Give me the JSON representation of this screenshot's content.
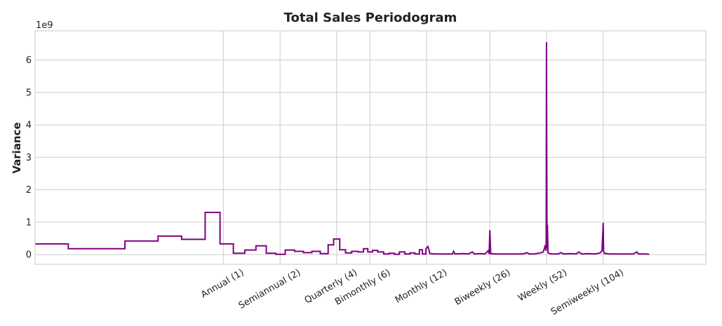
{
  "chart_data": {
    "type": "line",
    "title": "Total Sales Periodogram",
    "xlabel": "",
    "ylabel": "Variance",
    "y_offset_label": "1e9",
    "x_scale": "log",
    "x_tick_values": [
      1,
      2,
      4,
      6,
      12,
      26,
      52,
      104
    ],
    "x_tick_labels": [
      "Annual (1)",
      "Semiannual (2)",
      "Quarterly (4)",
      "Bimonthly (6)",
      "Monthly (12)",
      "Biweekly (26)",
      "Weekly (52)",
      "Semiweekly (104)"
    ],
    "xlim": [
      0.1,
      365
    ],
    "y_ticks": [
      0,
      1,
      2,
      3,
      4,
      5,
      6
    ],
    "y_tick_labels": [
      "0",
      "1",
      "2",
      "3",
      "4",
      "5",
      "6"
    ],
    "ylim": [
      -0.3,
      6.9
    ],
    "grid": true,
    "line_color": "#800080",
    "series": [
      {
        "values": [
          [
            0.1,
            0.33
          ],
          [
            0.15,
            0.33
          ],
          [
            0.15,
            0.18
          ],
          [
            0.3,
            0.18
          ],
          [
            0.3,
            0.42
          ],
          [
            0.45,
            0.42
          ],
          [
            0.45,
            0.57
          ],
          [
            0.6,
            0.57
          ],
          [
            0.6,
            0.47
          ],
          [
            0.8,
            0.47
          ],
          [
            0.8,
            1.3
          ],
          [
            0.96,
            1.3
          ],
          [
            0.96,
            0.33
          ],
          [
            1.13,
            0.33
          ],
          [
            1.13,
            0.04
          ],
          [
            1.3,
            0.04
          ],
          [
            1.3,
            0.14
          ],
          [
            1.49,
            0.14
          ],
          [
            1.49,
            0.27
          ],
          [
            1.69,
            0.27
          ],
          [
            1.69,
            0.04
          ],
          [
            1.9,
            0.04
          ],
          [
            1.9,
            0.01
          ],
          [
            2.13,
            0.01
          ],
          [
            2.13,
            0.14
          ],
          [
            2.39,
            0.14
          ],
          [
            2.39,
            0.1
          ],
          [
            2.66,
            0.1
          ],
          [
            2.66,
            0.06
          ],
          [
            2.95,
            0.06
          ],
          [
            2.95,
            0.1
          ],
          [
            3.27,
            0.1
          ],
          [
            3.27,
            0.03
          ],
          [
            3.6,
            0.03
          ],
          [
            3.6,
            0.3
          ],
          [
            3.85,
            0.3
          ],
          [
            3.85,
            0.48
          ],
          [
            4.15,
            0.48
          ],
          [
            4.15,
            0.15
          ],
          [
            4.45,
            0.15
          ],
          [
            4.45,
            0.05
          ],
          [
            4.8,
            0.05
          ],
          [
            4.8,
            0.1
          ],
          [
            5.2,
            0.1
          ],
          [
            5.2,
            0.08
          ],
          [
            5.55,
            0.08
          ],
          [
            5.55,
            0.18
          ],
          [
            5.85,
            0.18
          ],
          [
            5.85,
            0.08
          ],
          [
            6.2,
            0.08
          ],
          [
            6.2,
            0.13
          ],
          [
            6.6,
            0.13
          ],
          [
            6.6,
            0.08
          ],
          [
            7.1,
            0.08
          ],
          [
            7.1,
            0.02
          ],
          [
            7.6,
            0.02
          ],
          [
            7.6,
            0.04
          ],
          [
            8.1,
            0.04
          ],
          [
            8.1,
            0.01
          ],
          [
            8.6,
            0.01
          ],
          [
            8.6,
            0.08
          ],
          [
            9.2,
            0.08
          ],
          [
            9.2,
            0.02
          ],
          [
            9.8,
            0.02
          ],
          [
            9.8,
            0.05
          ],
          [
            10.4,
            0.05
          ],
          [
            10.4,
            0.02
          ],
          [
            11.0,
            0.02
          ],
          [
            11.0,
            0.15
          ],
          [
            11.4,
            0.15
          ],
          [
            11.4,
            0.02
          ],
          [
            11.9,
            0.02
          ],
          [
            11.9,
            0.18
          ],
          [
            12.2,
            0.25
          ],
          [
            12.5,
            0.03
          ],
          [
            13.5,
            0.02
          ],
          [
            15.0,
            0.02
          ],
          [
            16.5,
            0.02
          ],
          [
            16.7,
            0.1
          ],
          [
            17.0,
            0.02
          ],
          [
            18.5,
            0.03
          ],
          [
            20.0,
            0.02
          ],
          [
            21.0,
            0.08
          ],
          [
            21.5,
            0.02
          ],
          [
            23.0,
            0.03
          ],
          [
            24.5,
            0.02
          ],
          [
            25.5,
            0.12
          ],
          [
            25.8,
            0.02
          ],
          [
            26.0,
            0.75
          ],
          [
            26.3,
            0.03
          ],
          [
            28.0,
            0.02
          ],
          [
            31.0,
            0.02
          ],
          [
            35.0,
            0.02
          ],
          [
            39.0,
            0.02
          ],
          [
            41.0,
            0.06
          ],
          [
            42.0,
            0.02
          ],
          [
            45.0,
            0.02
          ],
          [
            48.0,
            0.05
          ],
          [
            50.0,
            0.08
          ],
          [
            51.0,
            0.25
          ],
          [
            51.8,
            0.12
          ],
          [
            52.0,
            6.55
          ],
          [
            52.3,
            0.2
          ],
          [
            52.6,
            0.92
          ],
          [
            53.0,
            0.05
          ],
          [
            55.0,
            0.02
          ],
          [
            60.0,
            0.02
          ],
          [
            62.0,
            0.06
          ],
          [
            64.0,
            0.02
          ],
          [
            70.0,
            0.03
          ],
          [
            75.0,
            0.02
          ],
          [
            77.0,
            0.08
          ],
          [
            80.0,
            0.02
          ],
          [
            86.0,
            0.03
          ],
          [
            94.0,
            0.02
          ],
          [
            100.0,
            0.05
          ],
          [
            102.5,
            0.12
          ],
          [
            104.0,
            0.98
          ],
          [
            104.6,
            0.1
          ],
          [
            105.5,
            0.04
          ],
          [
            112.0,
            0.02
          ],
          [
            125.0,
            0.02
          ],
          [
            140.0,
            0.02
          ],
          [
            150.0,
            0.02
          ],
          [
            157.0,
            0.08
          ],
          [
            160.0,
            0.02
          ],
          [
            175.0,
            0.02
          ],
          [
            182.5,
            0.01
          ]
        ]
      }
    ]
  }
}
